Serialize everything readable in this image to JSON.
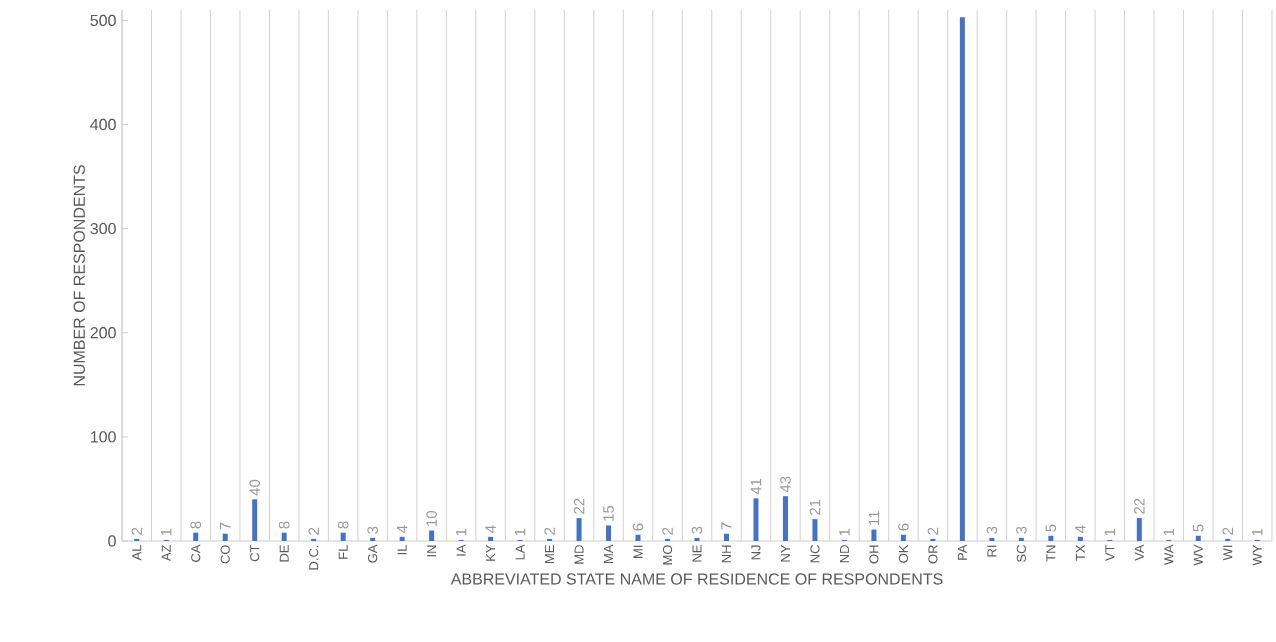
{
  "chart_data": {
    "type": "bar",
    "xlabel": "ABBREVIATED STATE NAME OF RESIDENCE OF RESPONDENTS",
    "ylabel": "NUMBER OF RESPONDENTS",
    "categories": [
      "AL",
      "AZ",
      "CA",
      "CO",
      "CT",
      "DE",
      "D.C.",
      "FL",
      "GA",
      "IL",
      "IN",
      "IA",
      "KY",
      "LA",
      "ME",
      "MD",
      "MA",
      "MI",
      "MO",
      "NE",
      "NH",
      "NJ",
      "NY",
      "NC",
      "ND",
      "OH",
      "OK",
      "OR",
      "PA",
      "RI",
      "SC",
      "TN",
      "TX",
      "VT",
      "VA",
      "WA",
      "WV",
      "WI",
      "WY"
    ],
    "values": [
      2,
      1,
      8,
      7,
      40,
      8,
      2,
      8,
      3,
      4,
      10,
      1,
      4,
      1,
      2,
      22,
      15,
      6,
      2,
      3,
      7,
      41,
      43,
      21,
      1,
      11,
      6,
      2,
      503,
      3,
      3,
      5,
      4,
      1,
      22,
      1,
      5,
      2,
      1
    ],
    "value_labels": [
      "2",
      "1",
      "8",
      "7",
      "40",
      "8",
      "2",
      "8",
      "3",
      "4",
      "10",
      "1",
      "4",
      "1",
      "2",
      "22",
      "15",
      "6",
      "2",
      "3",
      "7",
      "41",
      "43",
      "21",
      "1",
      "11",
      "6",
      "2",
      null,
      "3",
      "3",
      "5",
      "4",
      "1",
      "22",
      "1",
      "5",
      "2",
      "1"
    ],
    "color": "#4472c4",
    "ylim": [
      0,
      510
    ],
    "yticks": [
      0,
      100,
      200,
      300,
      400,
      500
    ],
    "grid": "x"
  }
}
